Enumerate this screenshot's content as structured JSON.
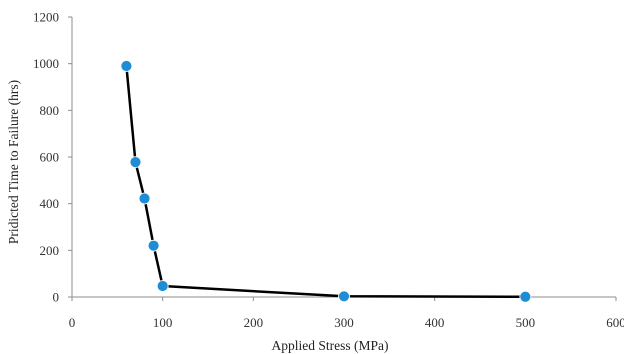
{
  "chart_data": {
    "type": "scatter",
    "title": "",
    "xlabel": "Applied Stress (MPa)",
    "ylabel": "Pridicted Time to Failure (hrs)",
    "xlim": [
      0,
      600
    ],
    "ylim": [
      0,
      1200
    ],
    "xticks": [
      0,
      100,
      200,
      300,
      400,
      500,
      600
    ],
    "yticks": [
      0,
      200,
      400,
      600,
      800,
      1000,
      1200
    ],
    "grid": false,
    "legend": "none",
    "series": [
      {
        "x": [
          60,
          70,
          80,
          90,
          100,
          300,
          500
        ],
        "y": [
          990,
          578,
          422,
          220,
          47,
          3,
          1
        ],
        "marker_color": "#1f8dd6",
        "line_color": "#000000",
        "connected": true
      }
    ]
  }
}
